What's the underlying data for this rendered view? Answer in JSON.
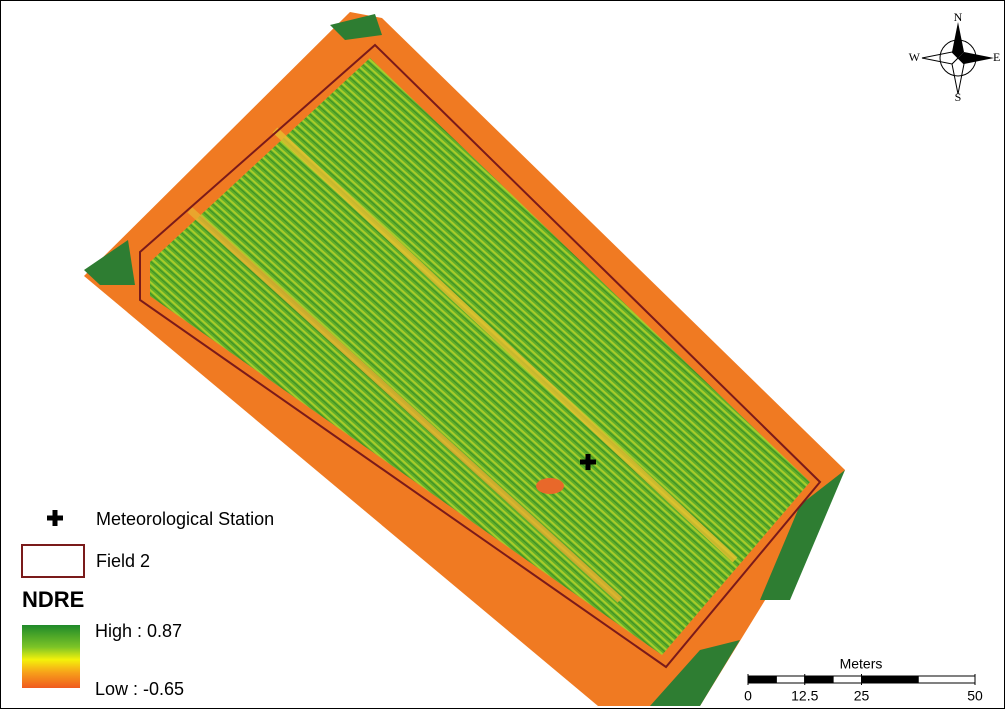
{
  "compass": {
    "north": "N",
    "south": "S",
    "east": "E",
    "west": "W"
  },
  "legend": {
    "station": "Meteorological Station",
    "field": "Field 2",
    "index_title": "NDRE",
    "high": "High : 0.87",
    "low": "Low : -0.65"
  },
  "scale_bar": {
    "unit": "Meters",
    "ticks": [
      0,
      12.5,
      25,
      50
    ]
  }
}
